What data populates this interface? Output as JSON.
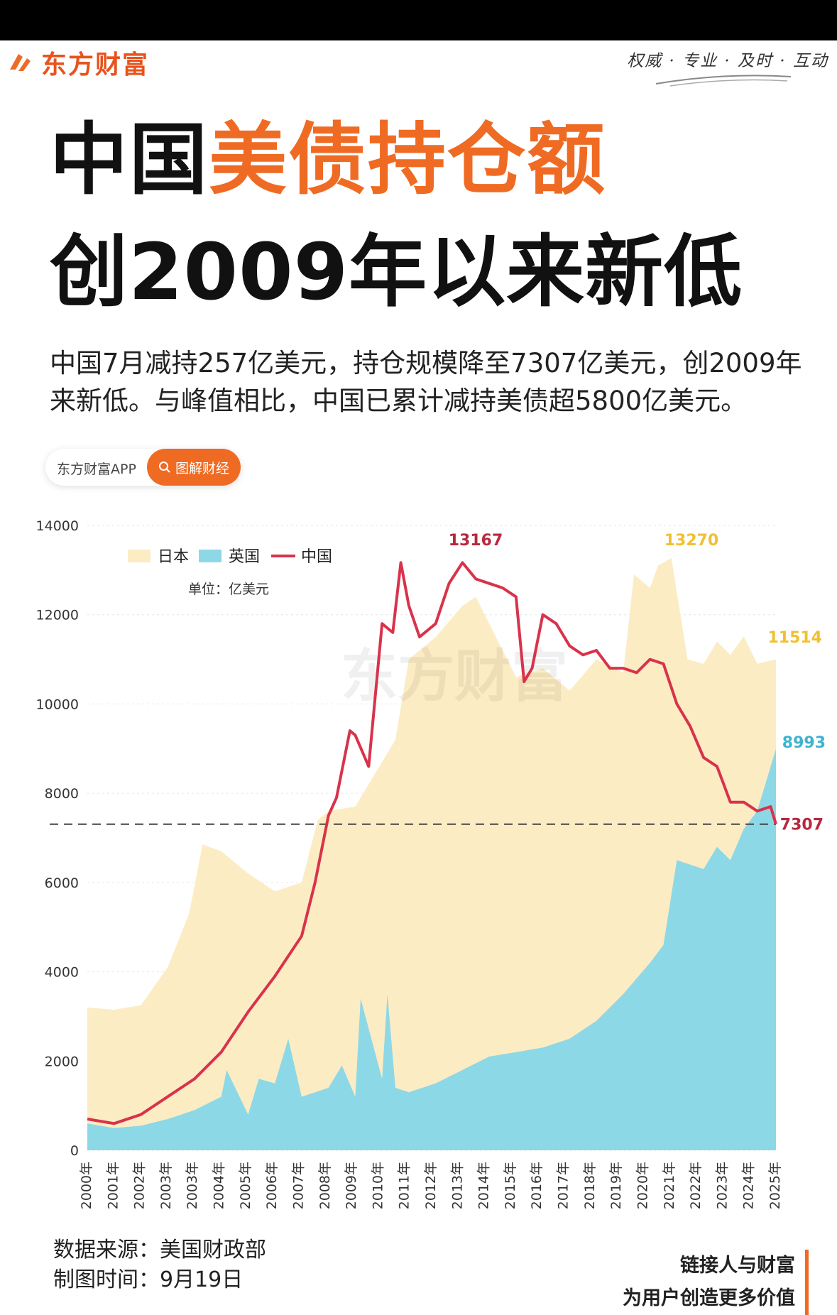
{
  "brand": {
    "name": "东方财富",
    "slogan": "权威 · 专业 · 及时 · 互动"
  },
  "headline": {
    "line1_part1": "中国",
    "line1_part2": "美债持仓额",
    "line2": "创2009年以来新低"
  },
  "summary": "中国7月减持257亿美元，持仓规模降至7307亿美元，创2009年来新低。与峰值相比，中国已累计减持美债超5800亿美元。",
  "tag": {
    "left": "东方财富APP",
    "button": "图解财经",
    "button_icon": "search-icon"
  },
  "colors": {
    "brand": "#ef6b24",
    "japan": "#fcecc4",
    "uk": "#8dd8e6",
    "china": "#d8334b",
    "japan_label": "#f1c031",
    "uk_label": "#3eb3cf"
  },
  "chart_data": {
    "type": "area",
    "ylim": [
      0,
      14000
    ],
    "yticks": [
      0,
      2000,
      4000,
      6000,
      8000,
      10000,
      12000,
      14000
    ],
    "xlabels": [
      "2000年",
      "2001年",
      "2002年",
      "2003年",
      "2003年",
      "2004年",
      "2005年",
      "2006年",
      "2007年",
      "2008年",
      "2009年",
      "2010年",
      "2011年",
      "2012年",
      "2013年",
      "2014年",
      "2015年",
      "2016年",
      "2017年",
      "2018年",
      "2019年",
      "2020年",
      "2021年",
      "2022年",
      "2023年",
      "2024年",
      "2025年"
    ],
    "legend": [
      "日本",
      "英国",
      "中国"
    ],
    "unit": "单位：亿美元",
    "reference_value": 7307,
    "series": [
      {
        "name": "日本",
        "x": [
          2000,
          2001,
          2002,
          2003,
          2003.8,
          2004.3,
          2005,
          2006,
          2007,
          2008,
          2008.6,
          2009,
          2010,
          2011,
          2011.5,
          2012,
          2013,
          2014,
          2014.5,
          2015,
          2015.5,
          2016,
          2017,
          2018,
          2019,
          2020,
          2020.4,
          2021,
          2021.3,
          2021.8,
          2022,
          2022.4,
          2023,
          2023.5,
          2024,
          2024.5,
          2025,
          2025.7
        ],
        "values": [
          3200,
          3150,
          3250,
          4100,
          5300,
          6850,
          6700,
          6200,
          5800,
          6000,
          7400,
          7600,
          7700,
          8700,
          9200,
          11000,
          11500,
          12200,
          12400,
          11800,
          11200,
          10600,
          10800,
          10300,
          11000,
          10700,
          12900,
          12600,
          13100,
          13270,
          12500,
          11000,
          10900,
          11400,
          11100,
          11514,
          10900,
          11000
        ]
      },
      {
        "name": "英国",
        "x": [
          2000,
          2001,
          2002,
          2003,
          2004,
          2005,
          2005.2,
          2006,
          2006.4,
          2007,
          2007.5,
          2008,
          2009,
          2009.5,
          2010,
          2010.2,
          2011,
          2011.2,
          2011.5,
          2012,
          2013,
          2014,
          2015,
          2016,
          2017,
          2018,
          2019,
          2020,
          2021,
          2021.5,
          2022,
          2023,
          2023.5,
          2024,
          2024.5,
          2025,
          2025.7
        ],
        "values": [
          600,
          500,
          550,
          700,
          900,
          1200,
          1800,
          800,
          1600,
          1500,
          2500,
          1200,
          1400,
          1900,
          1200,
          3400,
          1600,
          3500,
          1400,
          1300,
          1500,
          1800,
          2100,
          2200,
          2300,
          2500,
          2900,
          3500,
          4200,
          4600,
          6500,
          6300,
          6800,
          6500,
          7200,
          7600,
          8993
        ]
      },
      {
        "name": "中国",
        "x": [
          2000,
          2001,
          2002,
          2003,
          2004,
          2005,
          2006,
          2007,
          2008,
          2008.5,
          2009,
          2009.3,
          2009.8,
          2010,
          2010.5,
          2011,
          2011.4,
          2011.7,
          2012,
          2012.4,
          2013,
          2013.5,
          2014,
          2014.5,
          2015,
          2015.5,
          2016,
          2016.3,
          2016.6,
          2017,
          2017.5,
          2018,
          2018.5,
          2019,
          2019.5,
          2020,
          2020.5,
          2021,
          2021.5,
          2022,
          2022.5,
          2023,
          2023.5,
          2024,
          2024.5,
          2025,
          2025.5,
          2025.7
        ],
        "values": [
          700,
          600,
          800,
          1200,
          1600,
          2200,
          3100,
          3900,
          4800,
          6000,
          7500,
          7900,
          9400,
          9300,
          8600,
          11800,
          11600,
          13167,
          12200,
          11500,
          11800,
          12700,
          13167,
          12800,
          12700,
          12600,
          12400,
          10500,
          10800,
          12000,
          11800,
          11300,
          11100,
          11200,
          10800,
          10800,
          10700,
          11000,
          10900,
          10000,
          9500,
          8800,
          8600,
          7800,
          7800,
          7600,
          7700,
          7307
        ]
      }
    ],
    "annotations": [
      {
        "text": "13167",
        "series": "中国"
      },
      {
        "text": "13270",
        "series": "日本"
      },
      {
        "text": "11514",
        "series": "日本"
      },
      {
        "text": "8993",
        "series": "英国"
      },
      {
        "text": "7307",
        "series": "中国"
      }
    ]
  },
  "footer": {
    "source": "数据来源：美国财政部",
    "date": "制图时间：9月19日",
    "promo_line1": "链接人与财富",
    "promo_line2": "为用户创造更多价值"
  }
}
